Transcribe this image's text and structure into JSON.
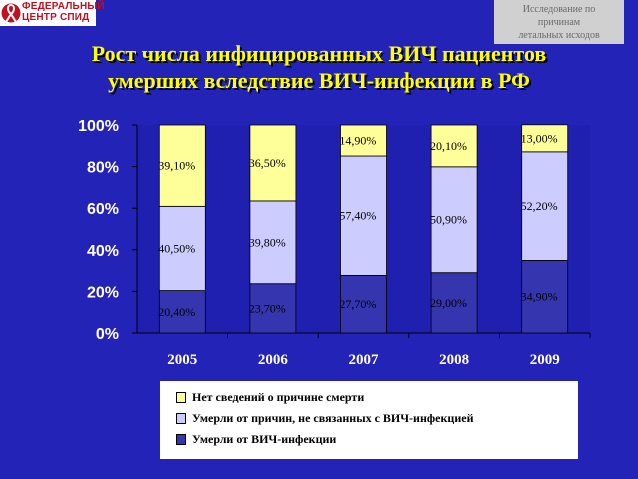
{
  "logo": {
    "line1": "ФЕДЕРАЛЬНЫЙ",
    "line2": "ЦЕНТР СПИД"
  },
  "corner_note": {
    "line1": "Исследование по",
    "line2": "причинам",
    "line3": "летальных исходов"
  },
  "title": {
    "line1": "Рост числа инфицированных ВИЧ пациентов",
    "line2": "умерших вследствие  ВИЧ-инфекции в РФ"
  },
  "colors": {
    "background": "#2323b8",
    "title": "#ffff00",
    "series": [
      "#3535b0",
      "#ccccff",
      "#ffff99"
    ]
  },
  "chart_data": {
    "type": "bar",
    "stacked": true,
    "categories": [
      "2005",
      "2006",
      "2007",
      "2008",
      "2009"
    ],
    "series": [
      {
        "name": "Умерли от ВИЧ-инфекции",
        "values": [
          20.4,
          23.7,
          27.7,
          29.0,
          34.9
        ],
        "labels": [
          "20,40%",
          "23,70%",
          "27,70%",
          "29,00%",
          "34,90%"
        ]
      },
      {
        "name": "Умерли от причин, не связанных с ВИЧ-инфекцией",
        "values": [
          40.5,
          39.8,
          57.4,
          50.9,
          52.2
        ],
        "labels": [
          "40,50%",
          "39,80%",
          "57,40%",
          "50,90%",
          "52,20%"
        ]
      },
      {
        "name": "Нет сведений о причине смерти",
        "values": [
          39.1,
          36.5,
          14.9,
          20.1,
          13.0
        ],
        "labels": [
          "39,10%",
          "36,50%",
          "14,90%",
          "20,10%",
          "13,00%"
        ]
      }
    ],
    "ylim": [
      0,
      100
    ],
    "yticks": [
      "0%",
      "20%",
      "40%",
      "60%",
      "80%",
      "100%"
    ],
    "grid": false,
    "legend_position": "bottom",
    "legend_order": [
      2,
      1,
      0
    ]
  }
}
